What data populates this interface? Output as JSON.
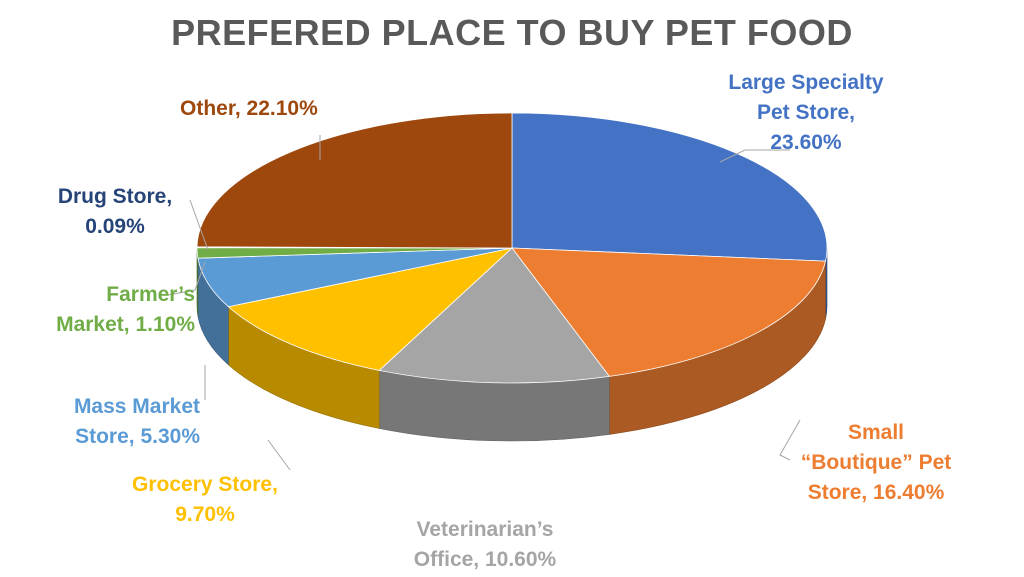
{
  "chart_data": {
    "type": "pie",
    "title": "PREFERED PLACE TO BUY PET FOOD",
    "slices": [
      {
        "label": "Large Specialty Pet Store",
        "value": 23.6,
        "value_text": "23.60%",
        "color": "#4472C4",
        "label_text": "Large Specialty\nPet Store,\n23.60%"
      },
      {
        "label": "Small “Boutique” Pet Store",
        "value": 16.4,
        "value_text": "16.40%",
        "color": "#ED7D31",
        "label_text": "Small\n“Boutique” Pet\nStore, 16.40%"
      },
      {
        "label": "Veterinarian’s Office",
        "value": 10.6,
        "value_text": "10.60%",
        "color": "#A5A5A5",
        "label_text": "Veterinarian’s\nOffice, 10.60%"
      },
      {
        "label": "Grocery Store",
        "value": 9.7,
        "value_text": "9.70%",
        "color": "#FFC000",
        "label_text": "Grocery Store,\n9.70%"
      },
      {
        "label": "Mass Market Store",
        "value": 5.3,
        "value_text": "5.30%",
        "color": "#5B9BD5",
        "label_text": "Mass Market\nStore, 5.30%"
      },
      {
        "label": "Farmer’s Market",
        "value": 1.1,
        "value_text": "1.10%",
        "color": "#70AD47",
        "label_text": "Farmer’s\nMarket, 1.10%"
      },
      {
        "label": "Drug Store",
        "value": 0.09,
        "value_text": "0.09%",
        "color": "#264478",
        "label_text": "Drug Store,\n0.09%"
      },
      {
        "label": "Other",
        "value": 22.1,
        "value_text": "22.10%",
        "color": "#9E480E",
        "label_text": "Other, 22.10%"
      }
    ],
    "label_colors": [
      "#4472C4",
      "#ED7D31",
      "#A5A5A5",
      "#FFC000",
      "#5B9BD5",
      "#70AD47",
      "#264478",
      "#9E480E"
    ]
  }
}
